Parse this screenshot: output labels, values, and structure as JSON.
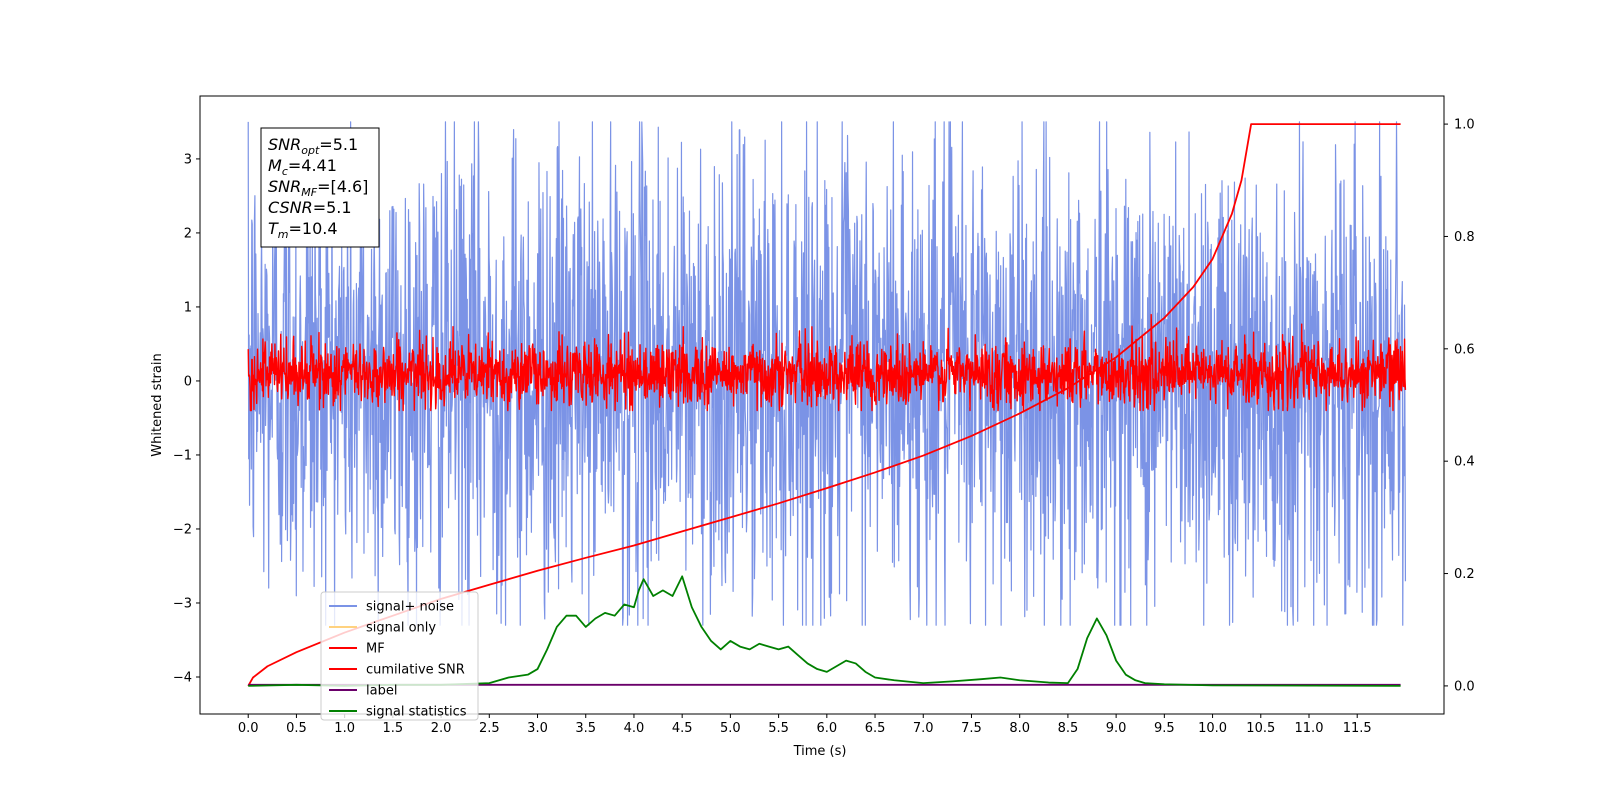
{
  "chart_data": {
    "type": "line",
    "xlabel": "Time (s)",
    "ylabel": "Whitened strain",
    "xlim": [
      -0.5,
      12.4
    ],
    "ylim": [
      -4.5,
      3.85
    ],
    "y2lim": [
      -0.05,
      1.05
    ],
    "x_ticks": [
      0.0,
      0.5,
      1.0,
      1.5,
      2.0,
      2.5,
      3.0,
      3.5,
      4.0,
      4.5,
      5.0,
      5.5,
      6.0,
      6.5,
      7.0,
      7.5,
      8.0,
      8.5,
      9.0,
      9.5,
      10.0,
      10.5,
      11.0,
      11.5
    ],
    "x_tick_labels": [
      "0.0",
      "0.5",
      "1.0",
      "1.5",
      "2.0",
      "2.5",
      "3.0",
      "3.5",
      "4.0",
      "4.5",
      "5.0",
      "5.5",
      "6.0",
      "6.5",
      "7.0",
      "7.5",
      "8.0",
      "8.5",
      "9.0",
      "9.5",
      "10.0",
      "10.5",
      "11.0",
      "11.5"
    ],
    "y_ticks": [
      -4,
      -3,
      -2,
      -1,
      0,
      1,
      2,
      3
    ],
    "y_tick_labels": [
      "−4",
      "−3",
      "−2",
      "−1",
      "0",
      "1",
      "2",
      "3"
    ],
    "y2_ticks": [
      0.0,
      0.2,
      0.4,
      0.6,
      0.8,
      1.0
    ],
    "y2_tick_labels": [
      "0.0",
      "0.2",
      "0.4",
      "0.6",
      "0.8",
      "1.0"
    ],
    "grid": false,
    "legend_position": "lower-left",
    "annotation": [
      {
        "symbol": "SNR",
        "subscript": "opt",
        "value": "=5.1"
      },
      {
        "symbol": "M",
        "subscript": "c",
        "value": "=4.41"
      },
      {
        "symbol": "SNR",
        "subscript": "MF",
        "value": "=[4.6]"
      },
      {
        "symbol": "CSNR",
        "subscript": "",
        "value": "=5.1"
      },
      {
        "symbol": "T",
        "subscript": "m",
        "value": "=10.4"
      }
    ],
    "series": [
      {
        "name": "signal+ noise",
        "color": "#7b93e6",
        "axis": "left",
        "style": "noise",
        "x_range": [
          0.0,
          12.0
        ],
        "envelope_upper": 2.2,
        "envelope_lower": -2.0,
        "peak_max": 3.5,
        "peak_min": -3.3
      },
      {
        "name": "signal only",
        "color": "#ffd27f",
        "axis": "left",
        "style": "hidden"
      },
      {
        "name": "MF",
        "color": "#ff0000",
        "axis": "left",
        "style": "noise",
        "x_range": [
          0.0,
          12.0
        ],
        "envelope_upper": 0.5,
        "envelope_lower": -0.3,
        "peak_max": 0.95,
        "peak_min": -0.4
      },
      {
        "name": "cumilative SNR",
        "color": "#ff0000",
        "axis": "right",
        "x": [
          0.0,
          0.05,
          0.2,
          0.5,
          1.0,
          1.5,
          2.0,
          2.5,
          3.0,
          3.5,
          4.0,
          4.5,
          5.0,
          5.5,
          6.0,
          6.5,
          7.0,
          7.5,
          8.0,
          8.5,
          9.0,
          9.5,
          9.8,
          10.0,
          10.2,
          10.3,
          10.4,
          10.45,
          11.0,
          11.5,
          11.95
        ],
        "values": [
          0.0,
          0.015,
          0.035,
          0.06,
          0.095,
          0.125,
          0.155,
          0.18,
          0.205,
          0.228,
          0.25,
          0.275,
          0.3,
          0.325,
          0.352,
          0.38,
          0.41,
          0.445,
          0.485,
          0.53,
          0.585,
          0.655,
          0.71,
          0.76,
          0.84,
          0.9,
          1.0,
          1.0,
          1.0,
          1.0,
          1.0
        ]
      },
      {
        "name": "label",
        "color": "#6a006a",
        "axis": "right",
        "x": [
          0.0,
          11.95
        ],
        "values": [
          0.002,
          0.002
        ]
      },
      {
        "name": "signal statistics",
        "color": "#008000",
        "axis": "right",
        "x": [
          0.0,
          0.5,
          1.0,
          1.5,
          2.0,
          2.5,
          2.7,
          2.9,
          3.0,
          3.1,
          3.2,
          3.3,
          3.4,
          3.5,
          3.6,
          3.7,
          3.8,
          3.9,
          4.0,
          4.05,
          4.1,
          4.2,
          4.3,
          4.4,
          4.5,
          4.6,
          4.7,
          4.8,
          4.9,
          5.0,
          5.1,
          5.2,
          5.3,
          5.4,
          5.5,
          5.6,
          5.7,
          5.8,
          5.9,
          6.0,
          6.2,
          6.3,
          6.4,
          6.5,
          6.7,
          7.0,
          7.3,
          7.6,
          7.8,
          8.0,
          8.3,
          8.5,
          8.6,
          8.7,
          8.8,
          8.9,
          9.0,
          9.1,
          9.2,
          9.3,
          9.5,
          10.0,
          11.95
        ],
        "values": [
          0.0,
          0.002,
          0.0,
          0.002,
          0.002,
          0.005,
          0.015,
          0.02,
          0.03,
          0.065,
          0.105,
          0.125,
          0.125,
          0.105,
          0.12,
          0.13,
          0.125,
          0.145,
          0.14,
          0.17,
          0.19,
          0.16,
          0.17,
          0.16,
          0.195,
          0.14,
          0.105,
          0.08,
          0.065,
          0.08,
          0.07,
          0.065,
          0.075,
          0.07,
          0.065,
          0.07,
          0.055,
          0.04,
          0.03,
          0.025,
          0.045,
          0.04,
          0.025,
          0.015,
          0.01,
          0.005,
          0.008,
          0.012,
          0.015,
          0.01,
          0.006,
          0.005,
          0.03,
          0.085,
          0.12,
          0.09,
          0.045,
          0.02,
          0.01,
          0.005,
          0.003,
          0.001,
          0.0
        ]
      }
    ]
  }
}
